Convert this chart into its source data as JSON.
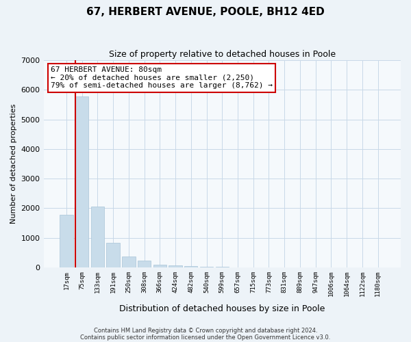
{
  "title": "67, HERBERT AVENUE, POOLE, BH12 4ED",
  "subtitle": "Size of property relative to detached houses in Poole",
  "xlabel": "Distribution of detached houses by size in Poole",
  "ylabel": "Number of detached properties",
  "bar_labels": [
    "17sqm",
    "75sqm",
    "133sqm",
    "191sqm",
    "250sqm",
    "308sqm",
    "366sqm",
    "424sqm",
    "482sqm",
    "540sqm",
    "599sqm",
    "657sqm",
    "715sqm",
    "773sqm",
    "831sqm",
    "889sqm",
    "947sqm",
    "1006sqm",
    "1064sqm",
    "1122sqm",
    "1180sqm"
  ],
  "bar_values": [
    1780,
    5780,
    2060,
    830,
    370,
    220,
    100,
    70,
    40,
    25,
    15,
    0,
    0,
    0,
    0,
    0,
    0,
    0,
    0,
    0,
    0
  ],
  "bar_color": "#c8dcea",
  "vline_color": "#cc0000",
  "annotation_text_line1": "67 HERBERT AVENUE: 80sqm",
  "annotation_text_line2": "← 20% of detached houses are smaller (2,250)",
  "annotation_text_line3": "79% of semi-detached houses are larger (8,762) →",
  "box_edge_color": "#cc0000",
  "ylim": [
    0,
    7000
  ],
  "yticks": [
    0,
    1000,
    2000,
    3000,
    4000,
    5000,
    6000,
    7000
  ],
  "grid_color": "#c8d8e8",
  "footer_line1": "Contains HM Land Registry data © Crown copyright and database right 2024.",
  "footer_line2": "Contains public sector information licensed under the Open Government Licence v3.0.",
  "bg_color": "#edf3f8",
  "plot_bg_color": "#f5f9fc"
}
